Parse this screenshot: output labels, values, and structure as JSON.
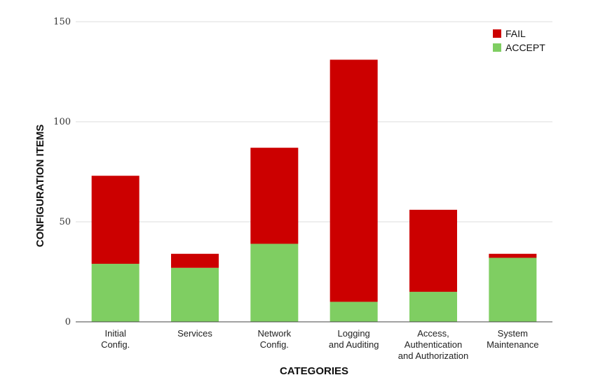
{
  "chart_data": {
    "type": "bar",
    "stacked": true,
    "categories": [
      [
        "Initial",
        "Config."
      ],
      [
        "Services"
      ],
      [
        "Network",
        "Config."
      ],
      [
        "Logging",
        "and Auditing"
      ],
      [
        "Access,",
        "Authentication",
        "and Authorization"
      ],
      [
        "System",
        "Maintenance"
      ]
    ],
    "series": [
      {
        "name": "ACCEPT",
        "color": "#7fce62",
        "values": [
          29,
          27,
          39,
          10,
          15,
          32
        ]
      },
      {
        "name": "FAIL",
        "color": "#cc0000",
        "values": [
          44,
          7,
          48,
          121,
          41,
          2
        ]
      }
    ],
    "xlabel": "CATEGORIES",
    "ylabel": "CONFIGURATION ITEMS",
    "ylim": [
      0,
      150
    ],
    "yticks": [
      0,
      50,
      100,
      150
    ],
    "grid": true,
    "legend_position": "top-right"
  }
}
